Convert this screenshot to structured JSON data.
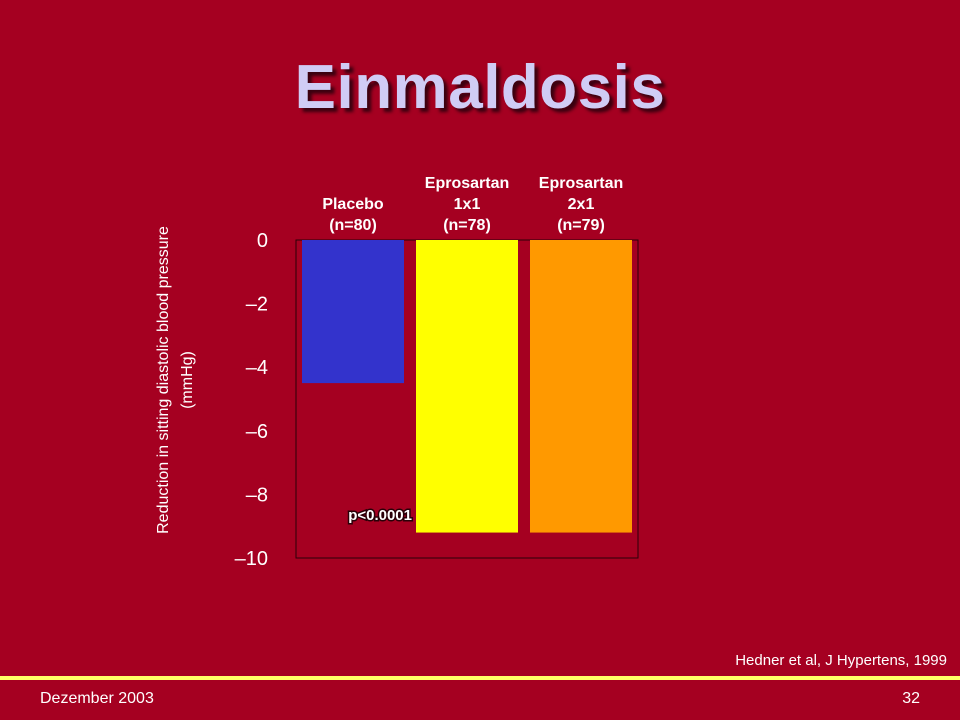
{
  "slide": {
    "title": "Einmaldosis",
    "citation": "Hedner et al, J Hypertens, 1999",
    "footer_left": "Dezember 2003",
    "footer_right": "32"
  },
  "colors": {
    "background": "#a50021",
    "title": "#d0ccf5",
    "footer_line": "#ffff66"
  },
  "chart_data": {
    "type": "bar",
    "categories": [
      [
        "Placebo",
        "(n=80)"
      ],
      [
        "Eprosartan",
        "1x1",
        "(n=78)"
      ],
      [
        "Eprosartan",
        "2x1",
        "(n=79)"
      ]
    ],
    "values": [
      -4.5,
      -9.2,
      -9.2
    ],
    "bar_colors": [
      "#3333cc",
      "#ffff00",
      "#ff9900"
    ],
    "ylabel": "Reduction in sitting diastolic blood pressure (mmHg)",
    "ylim": [
      -10,
      0
    ],
    "yticks": [
      0,
      -2,
      -4,
      -6,
      -8,
      -10
    ],
    "ytick_labels": [
      "0",
      "–2",
      "–4",
      "–6",
      "–8",
      "–10"
    ],
    "annotation": "p<0.0001",
    "grid": false,
    "legend": "none"
  }
}
